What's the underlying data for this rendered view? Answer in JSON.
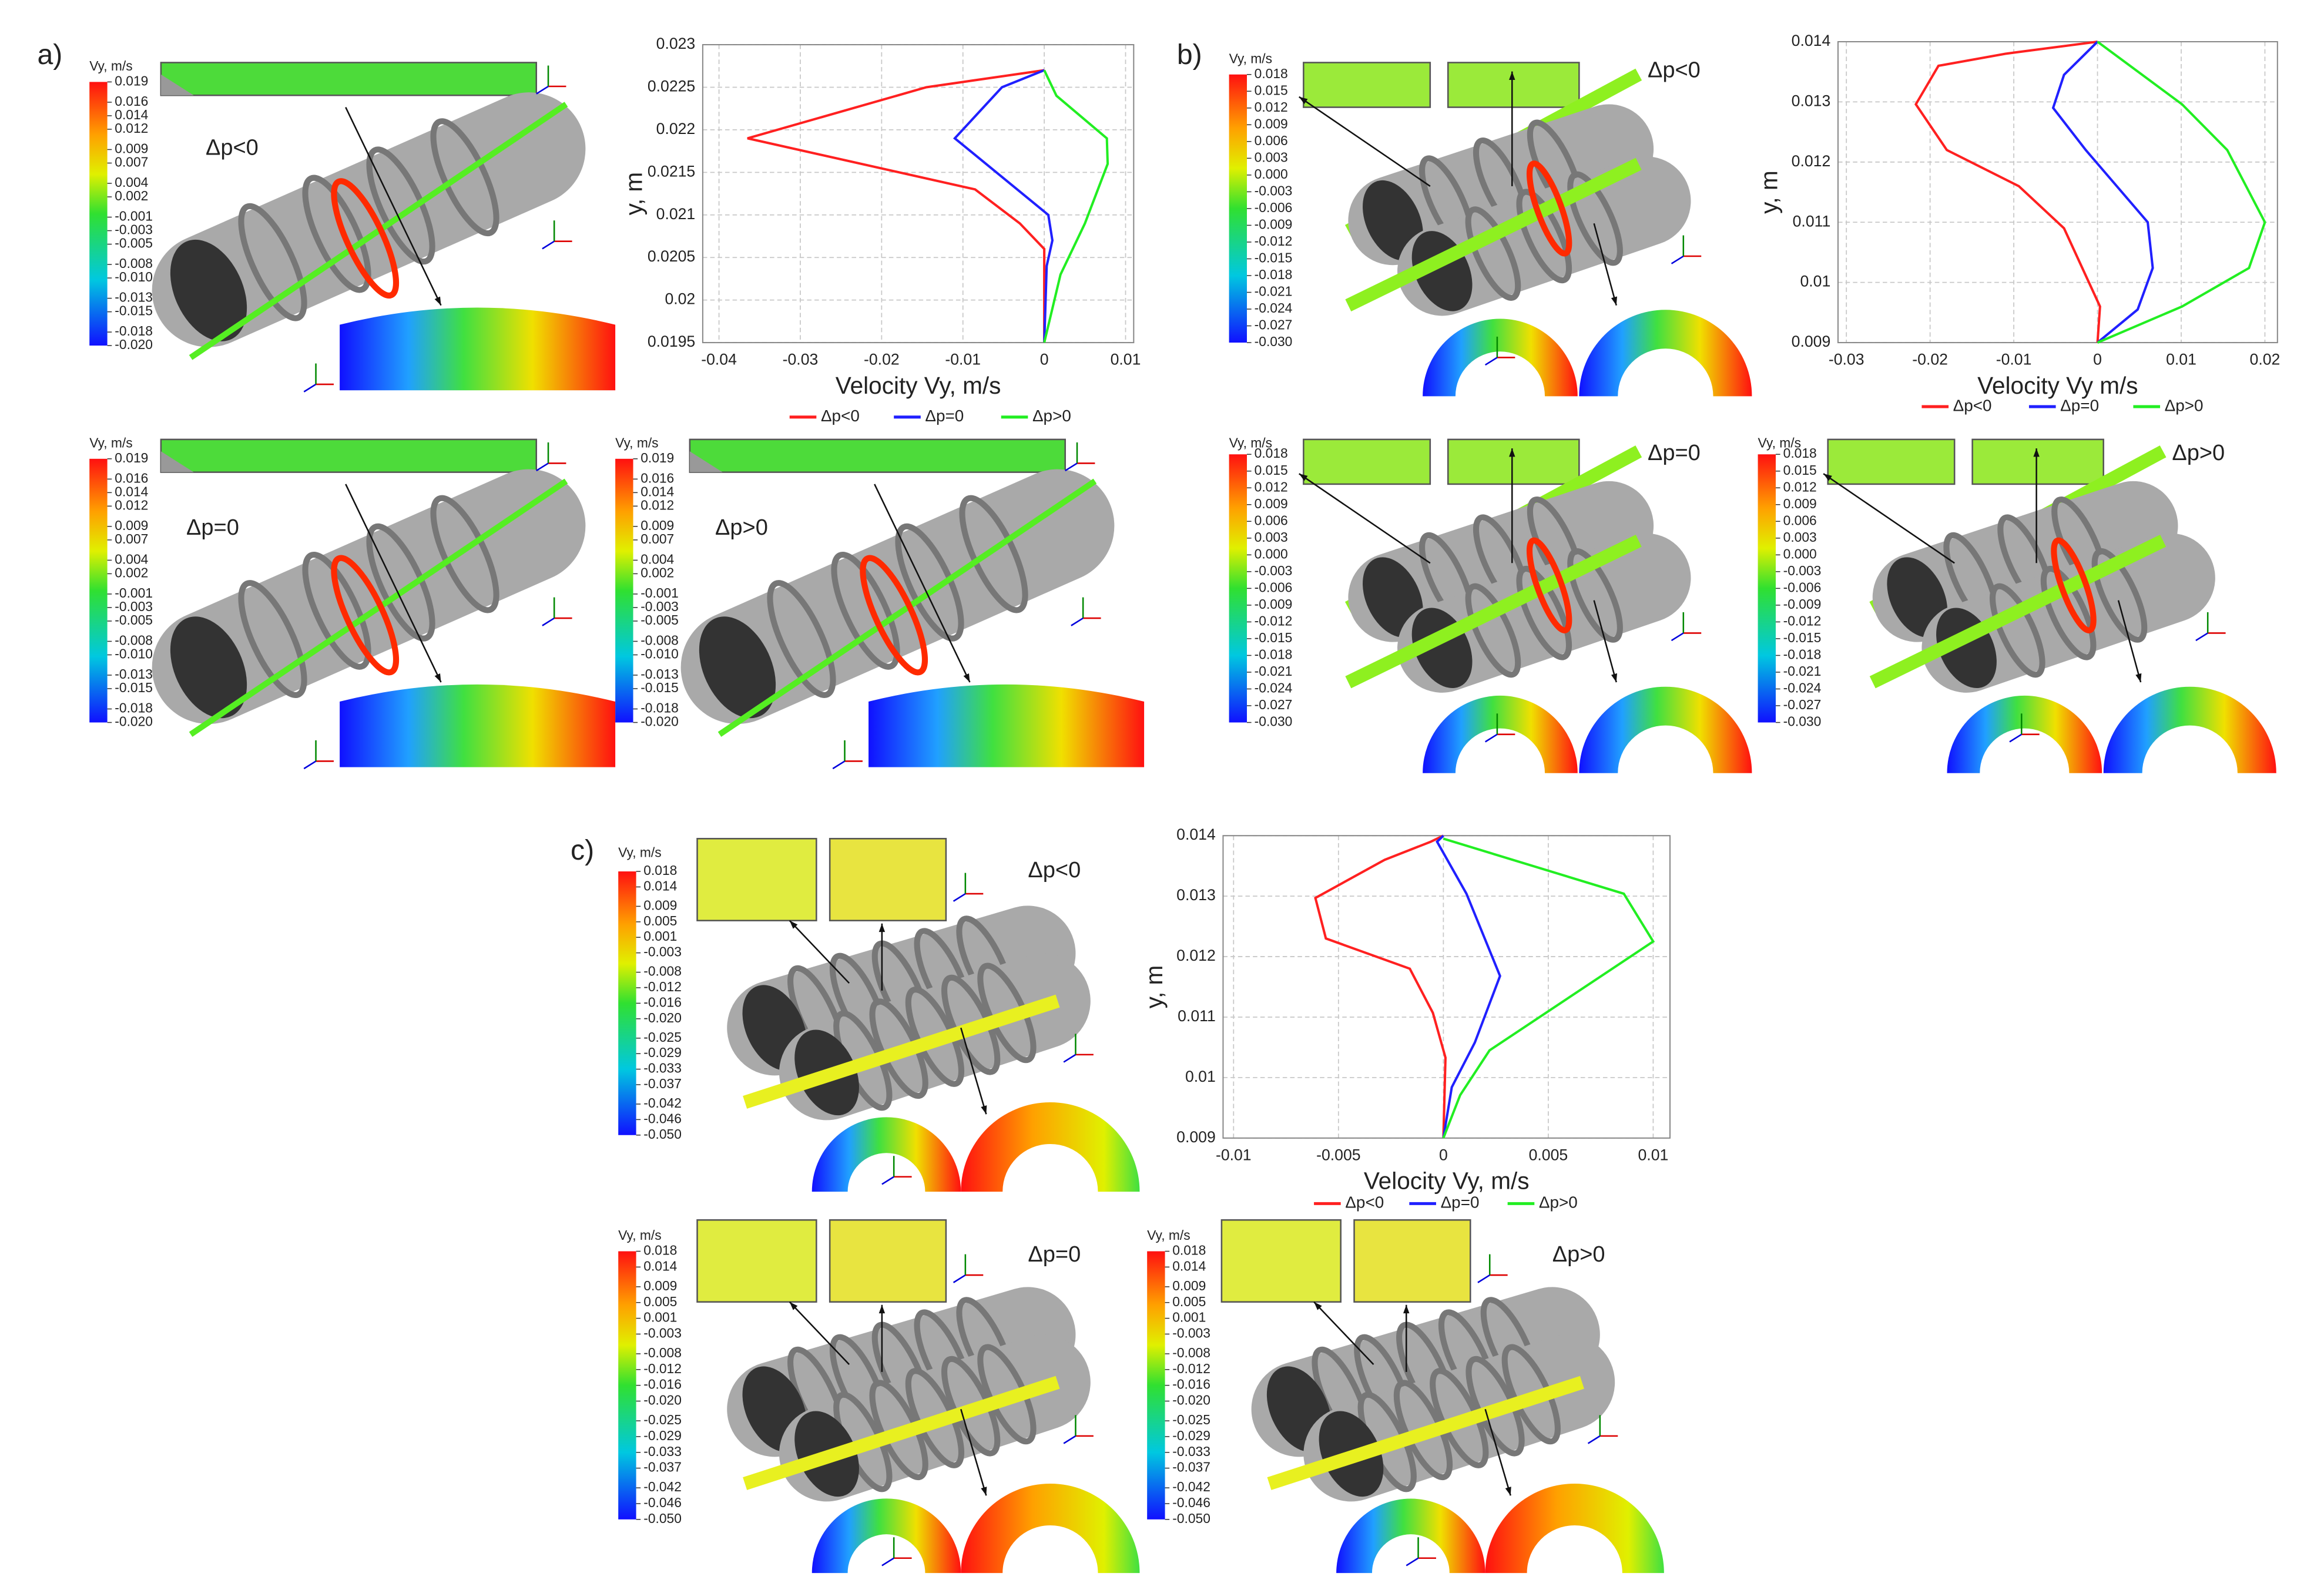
{
  "chart_data": [
    {
      "type": "line",
      "xlabel": "Velocity Vy, m/s",
      "ylabel": "y, m",
      "xlim": [
        -0.042,
        0.011
      ],
      "xticks": [
        -0.04,
        -0.03,
        -0.02,
        -0.01,
        0,
        0.01
      ],
      "ylim": [
        0.0195,
        0.023
      ],
      "yticks": [
        0.0195,
        0.02,
        0.0205,
        0.021,
        0.0215,
        0.022,
        0.0225,
        0.023
      ],
      "grid": true,
      "legend": "bottom",
      "series": [
        {
          "name": "Δp<0",
          "color": "#ff2020",
          "x": [
            0,
            0,
            -0.003,
            -0.0085,
            -0.0365,
            -0.0145,
            0
          ],
          "values": [
            0.0195,
            0.0206,
            0.0209,
            0.0213,
            0.0219,
            0.0225,
            0.0227
          ]
        },
        {
          "name": "Δp=0",
          "color": "#2020ff",
          "x": [
            0,
            0.0003,
            0.001,
            0.0005,
            -0.011,
            -0.0052,
            0
          ],
          "values": [
            0.0195,
            0.0204,
            0.0207,
            0.021,
            0.0219,
            0.0225,
            0.0227
          ]
        },
        {
          "name": "Δp>0",
          "color": "#22ee22",
          "x": [
            0,
            0.002,
            0.005,
            0.0078,
            0.0077,
            0.0015,
            0
          ],
          "values": [
            0.0195,
            0.0203,
            0.0209,
            0.0216,
            0.0219,
            0.0224,
            0.0227
          ]
        }
      ]
    },
    {
      "type": "line",
      "xlabel": "Velocity Vy  m/s",
      "ylabel": "y, m",
      "xlim": [
        -0.031,
        0.0215
      ],
      "xticks": [
        -0.03,
        -0.02,
        -0.01,
        0,
        0.01,
        0.02
      ],
      "ylim": [
        0.009,
        0.014
      ],
      "yticks": [
        0.009,
        0.01,
        0.011,
        0.012,
        0.013,
        0.014
      ],
      "grid": true,
      "legend": "bottom",
      "series": [
        {
          "name": "Δp<0",
          "color": "#ff2020",
          "x": [
            0,
            0.0003,
            -0.004,
            -0.0094,
            -0.018,
            -0.0217,
            -0.019,
            -0.011,
            0
          ],
          "values": [
            0.009,
            0.0096,
            0.0109,
            0.0116,
            0.0122,
            0.01296,
            0.0136,
            0.0138,
            0.014
          ]
        },
        {
          "name": "Δp=0",
          "color": "#2020ff",
          "x": [
            0,
            0.0048,
            0.0066,
            0.006,
            -0.0014,
            -0.0053,
            -0.004,
            0
          ],
          "values": [
            0.009,
            0.00955,
            0.01024,
            0.011,
            0.0122,
            0.0129,
            0.01345,
            0.014
          ]
        },
        {
          "name": "Δp>0",
          "color": "#22ee22",
          "x": [
            0,
            0.0101,
            0.0181,
            0.02,
            0.0155,
            0.0101,
            0
          ],
          "values": [
            0.009,
            0.0096,
            0.01024,
            0.011,
            0.0122,
            0.01296,
            0.014
          ]
        }
      ]
    },
    {
      "type": "line",
      "xlabel": "Velocity Vy, m/s",
      "ylabel": "y, m",
      "xlim": [
        -0.0105,
        0.0108
      ],
      "xticks": [
        -0.01,
        -0.005,
        0,
        0.005,
        0.01
      ],
      "ylim": [
        0.009,
        0.014
      ],
      "yticks": [
        0.009,
        0.01,
        0.011,
        0.012,
        0.013,
        0.014
      ],
      "grid": true,
      "legend": "bottom",
      "series": [
        {
          "name": "Δp<0",
          "color": "#ff2020",
          "x": [
            0,
            0.0001,
            -0.0005,
            -0.0016,
            -0.0056,
            -0.0061,
            -0.0028,
            -0.0006,
            0
          ],
          "values": [
            0.009,
            0.01033,
            0.01107,
            0.0118,
            0.0123,
            0.01297,
            0.0136,
            0.0139,
            0.014
          ]
        },
        {
          "name": "Δp=0",
          "color": "#2020ff",
          "x": [
            0,
            0.0004,
            0.0015,
            0.0027,
            0.0011,
            -0.0003,
            0
          ],
          "values": [
            0.009,
            0.00984,
            0.01058,
            0.01168,
            0.01304,
            0.0139,
            0.014
          ]
        },
        {
          "name": "Δp>0",
          "color": "#22ee22",
          "x": [
            0,
            0.0008,
            0.0022,
            0.01,
            0.0086,
            0
          ],
          "values": [
            0.009,
            0.00971,
            0.01045,
            0.01225,
            0.01304,
            0.01395
          ]
        }
      ]
    }
  ],
  "panel_labels": [
    "a)",
    "b)",
    "c)"
  ],
  "case_labels": [
    "Δp<0",
    "Δp=0",
    "Δp>0",
    "Δp<0",
    "Δp=0",
    "Δp>0",
    "Δp<0",
    "Δp=0",
    "Δp>0"
  ],
  "colorbars": [
    {
      "title": "Vy, m/s",
      "ticks": [
        0.019,
        0.016,
        0.014,
        0.012,
        0.009,
        0.007,
        0.004,
        0.002,
        -0.001,
        -0.003,
        -0.005,
        -0.008,
        {
          "value": -0.01,
          "label": "-0.010"
        },
        -0.013,
        -0.015,
        -0.018,
        {
          "value": -0.02,
          "label": "-0.020"
        }
      ]
    },
    {
      "title": "Vy, m/s",
      "ticks": [
        0.019,
        0.016,
        0.014,
        0.012,
        0.009,
        0.007,
        0.004,
        0.002,
        -0.001,
        -0.003,
        -0.005,
        -0.008,
        {
          "value": -0.01,
          "label": "-0.010"
        },
        -0.013,
        -0.015,
        -0.018,
        {
          "value": -0.02,
          "label": "-0.020"
        }
      ]
    },
    {
      "title": "Vy, m/s",
      "ticks": [
        0.019,
        0.016,
        0.014,
        0.012,
        0.009,
        0.007,
        0.004,
        0.002,
        -0.001,
        -0.003,
        -0.005,
        -0.008,
        {
          "value": -0.01,
          "label": "-0.010"
        },
        -0.013,
        -0.015,
        -0.018,
        {
          "value": -0.02,
          "label": "-0.020"
        }
      ]
    },
    {
      "title": "Vy, m/s",
      "ticks": [
        0.018,
        0.015,
        0.012,
        0.009,
        0.006,
        0.003,
        {
          "value": 0,
          "label": "0.000"
        },
        -0.003,
        -0.006,
        -0.009,
        -0.012,
        -0.015,
        -0.018,
        -0.021,
        -0.024,
        -0.027,
        {
          "value": -0.03,
          "label": "-0.030"
        }
      ]
    },
    {
      "title": "Vy, m/s",
      "ticks": [
        0.018,
        0.015,
        0.012,
        0.009,
        0.006,
        0.003,
        {
          "value": 0,
          "label": "0.000"
        },
        -0.003,
        -0.006,
        -0.009,
        -0.012,
        -0.015,
        -0.018,
        -0.021,
        -0.024,
        -0.027,
        {
          "value": -0.03,
          "label": "-0.030"
        }
      ]
    },
    {
      "title": "Vy, m/s",
      "ticks": [
        0.018,
        0.015,
        0.012,
        0.009,
        0.006,
        0.003,
        {
          "value": 0,
          "label": "0.000"
        },
        -0.003,
        -0.006,
        -0.009,
        -0.012,
        -0.015,
        -0.018,
        -0.021,
        -0.024,
        -0.027,
        {
          "value": -0.03,
          "label": "-0.030"
        }
      ]
    },
    {
      "title": "Vy, m/s",
      "ticks": [
        0.018,
        0.014,
        0.009,
        0.005,
        0.001,
        -0.003,
        -0.008,
        -0.012,
        -0.016,
        {
          "value": -0.02,
          "label": "-0.020"
        },
        -0.025,
        -0.029,
        -0.033,
        -0.037,
        -0.042,
        -0.046,
        {
          "value": -0.05,
          "label": "-0.050"
        }
      ]
    },
    {
      "title": "Vy, m/s",
      "ticks": [
        0.018,
        0.014,
        0.009,
        0.005,
        0.001,
        -0.003,
        -0.008,
        -0.012,
        -0.016,
        {
          "value": -0.02,
          "label": "-0.020"
        },
        -0.025,
        -0.029,
        -0.033,
        -0.037,
        -0.042,
        -0.046,
        {
          "value": -0.05,
          "label": "-0.050"
        }
      ]
    },
    {
      "title": "Vy, m/s",
      "ticks": [
        0.018,
        0.014,
        0.009,
        0.005,
        0.001,
        -0.003,
        -0.008,
        -0.012,
        -0.016,
        {
          "value": -0.02,
          "label": "-0.020"
        },
        -0.025,
        -0.029,
        -0.033,
        -0.037,
        -0.042,
        -0.046,
        {
          "value": -0.05,
          "label": "-0.050"
        }
      ]
    }
  ]
}
